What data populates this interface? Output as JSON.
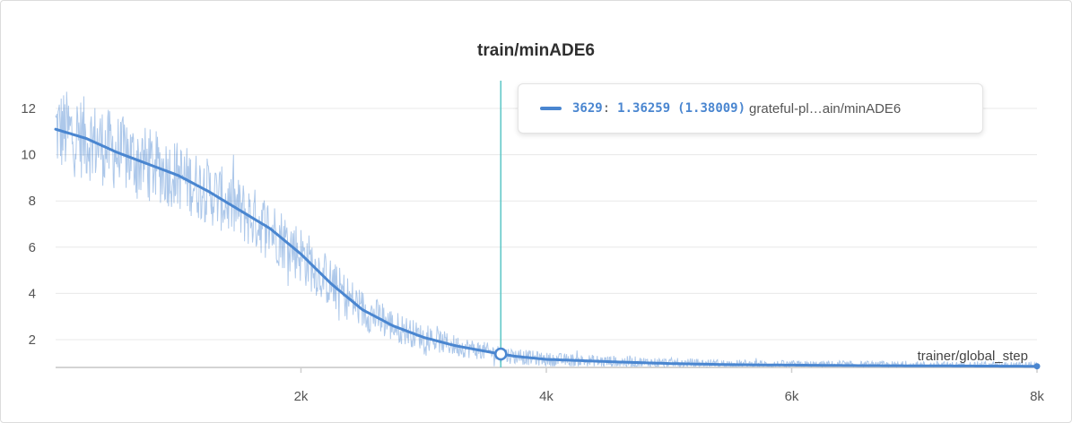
{
  "chart_data": {
    "type": "line",
    "title": "train/minADE6",
    "xlabel": "trainer/global_step",
    "ylabel": "",
    "xlim": [
      0,
      8000
    ],
    "ylim": [
      0.8,
      13.2
    ],
    "x_ticks": [
      2000,
      4000,
      6000,
      8000
    ],
    "x_tick_labels": [
      "2k",
      "4k",
      "6k",
      "8k"
    ],
    "y_ticks": [
      2,
      4,
      6,
      8,
      10,
      12
    ],
    "y_tick_labels": [
      "2",
      "4",
      "6",
      "8",
      "10",
      "12"
    ],
    "grid": true,
    "series": [
      {
        "name": "grateful-pl…ain/minADE6",
        "color": "#4a86d0",
        "smoothed": {
          "x": [
            0,
            250,
            500,
            750,
            1000,
            1250,
            1500,
            1750,
            2000,
            2250,
            2500,
            2750,
            3000,
            3250,
            3500,
            3629,
            3750,
            4000,
            4500,
            5000,
            5500,
            6000,
            6500,
            7000,
            7500,
            8000
          ],
          "y": [
            11.1,
            10.7,
            10.1,
            9.6,
            9.1,
            8.4,
            7.6,
            6.8,
            5.7,
            4.4,
            3.3,
            2.6,
            2.1,
            1.75,
            1.5,
            1.38,
            1.28,
            1.15,
            1.05,
            0.97,
            0.92,
            0.9,
            0.88,
            0.87,
            0.86,
            0.85
          ]
        },
        "raw_noise_amplitude": {
          "x": [
            0,
            1000,
            2000,
            2500,
            3000,
            3500,
            4000,
            5000,
            6000,
            8000
          ],
          "y": [
            1.9,
            1.5,
            1.3,
            0.9,
            0.55,
            0.4,
            0.3,
            0.25,
            0.2,
            0.2
          ]
        }
      }
    ],
    "cursor": {
      "step": "3629",
      "value": "1.36259",
      "smoothed_value": "(1.38009)",
      "separator": ":",
      "series_name": "grateful-pl…ain/minADE6",
      "line_color": "#62c8c8"
    }
  }
}
